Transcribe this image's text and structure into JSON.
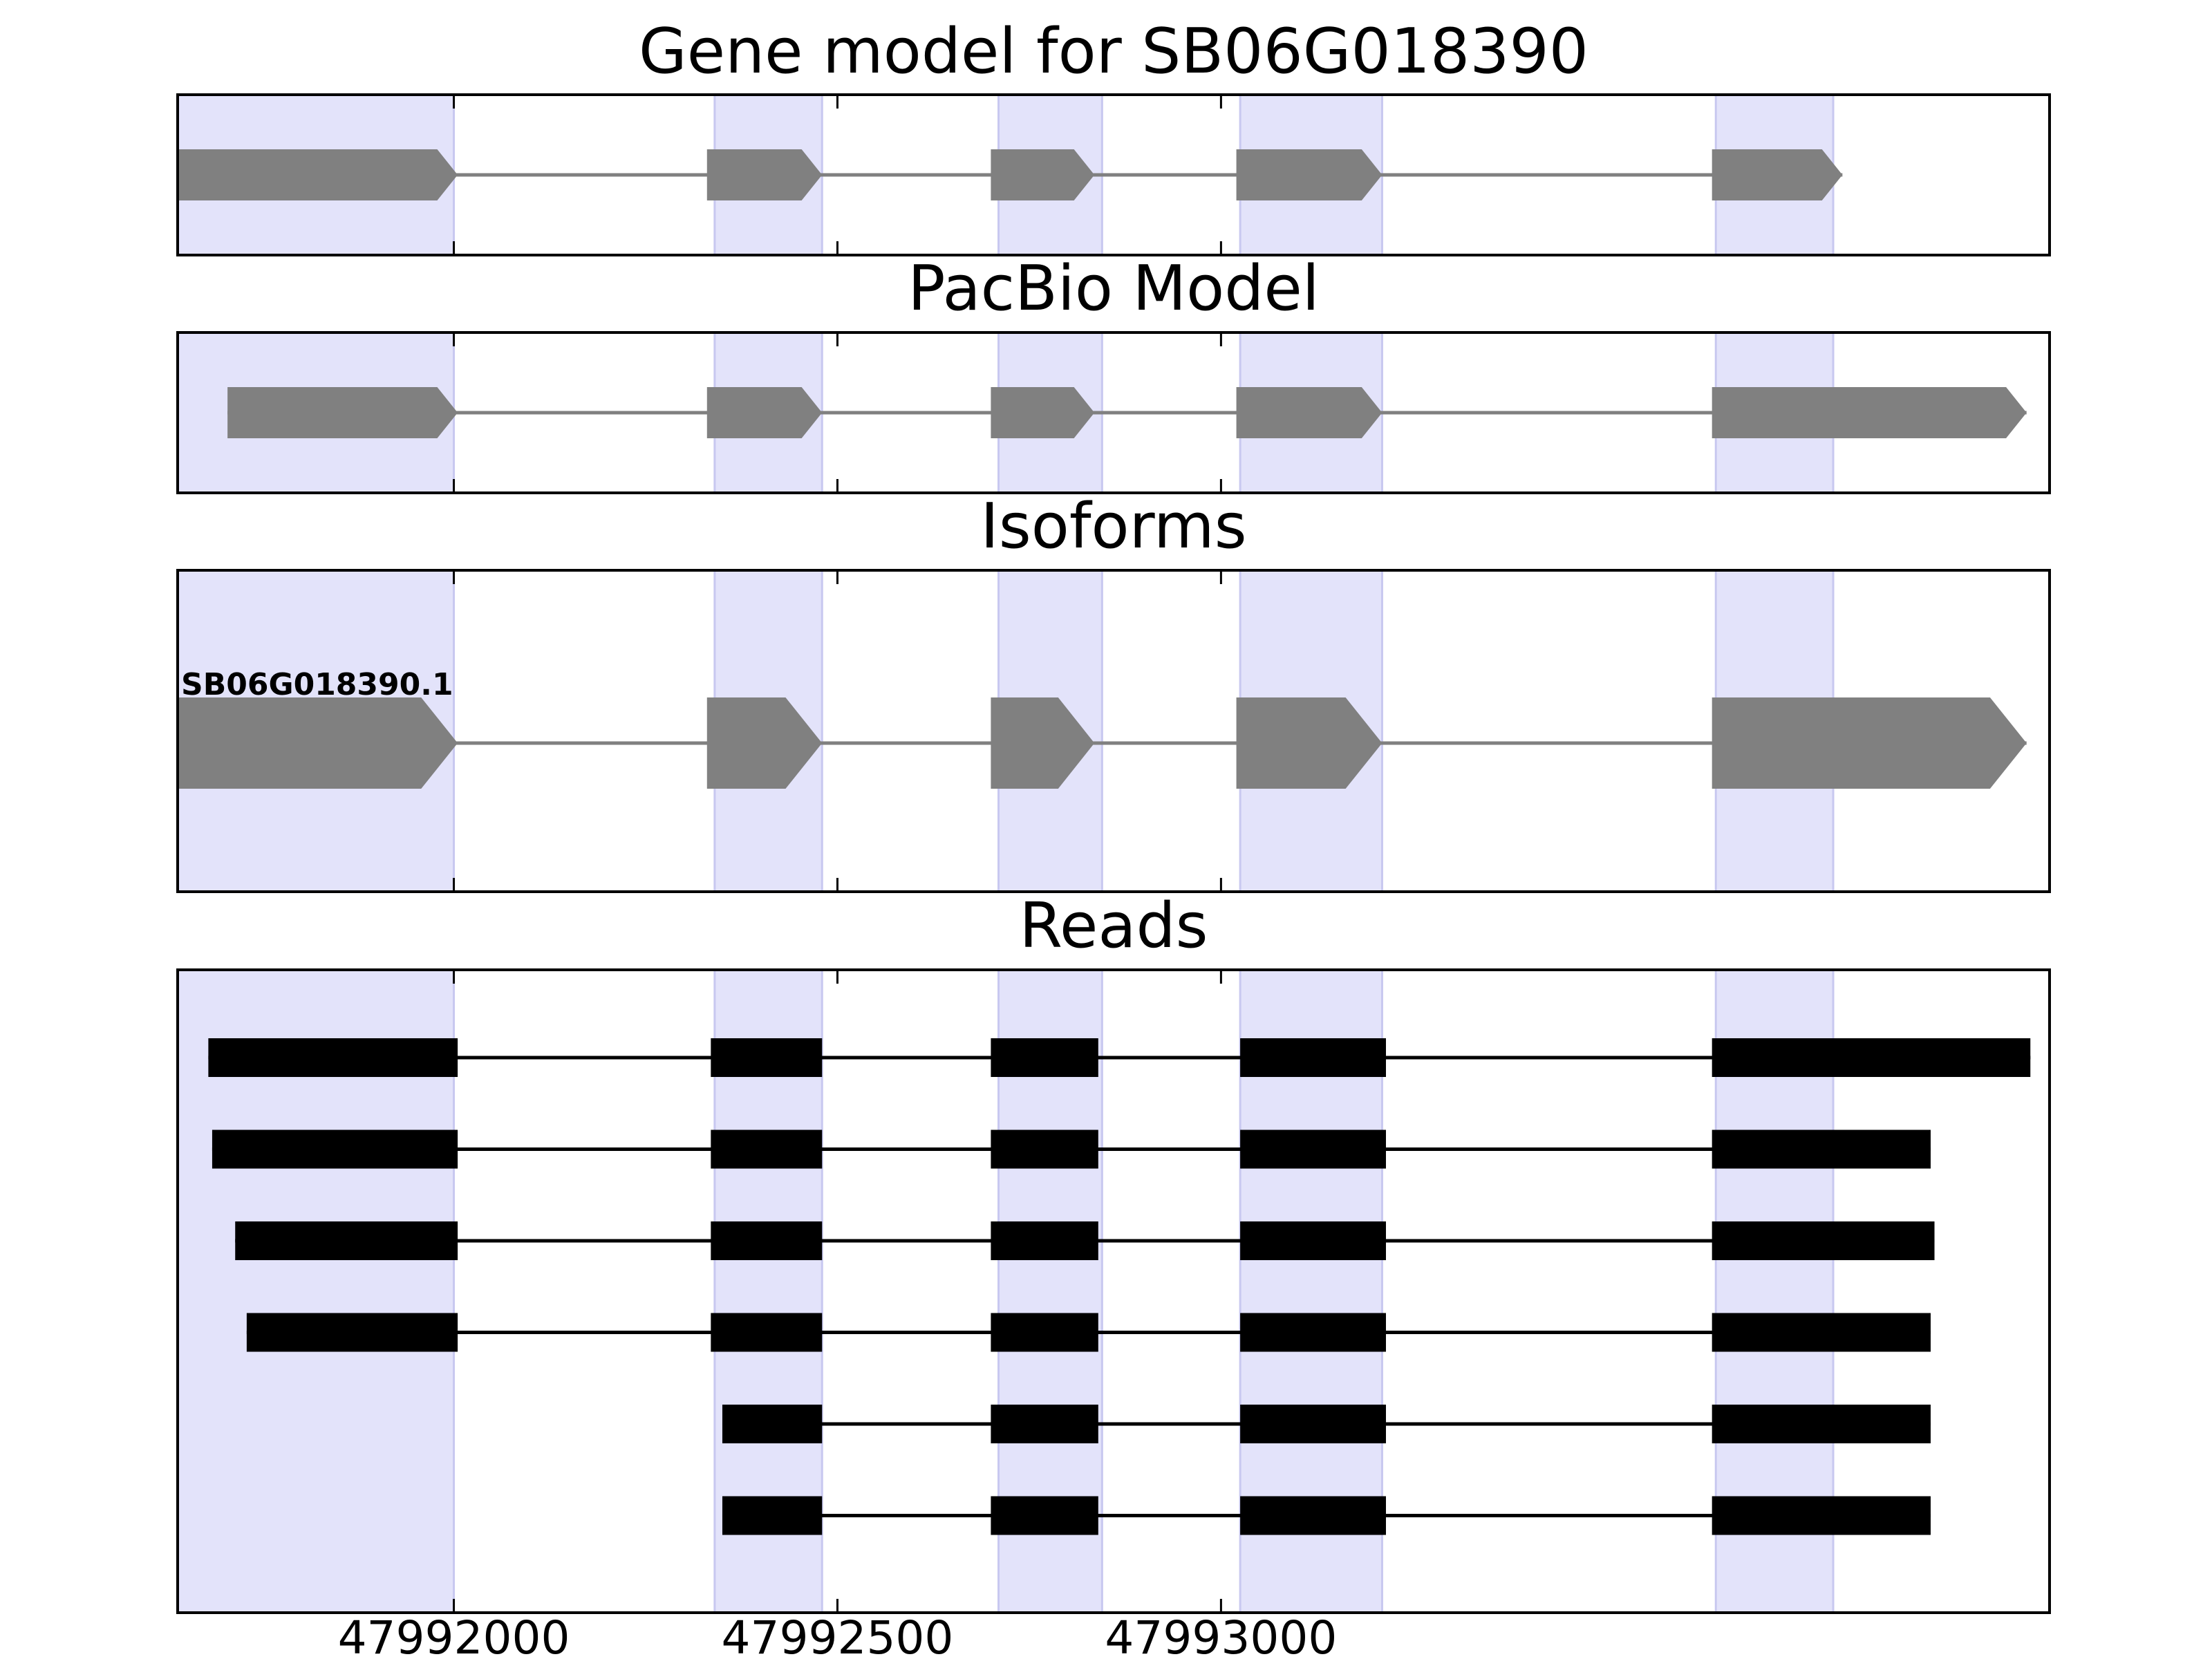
{
  "chart_data": [
    {
      "type": "gene-track",
      "title": "Gene model for SB06G018390",
      "strand": "+",
      "exons": [
        [
          47991640,
          47992005
        ],
        [
          47992330,
          47992480
        ],
        [
          47992700,
          47992835
        ],
        [
          47993020,
          47993210
        ],
        [
          47993640,
          47993810
        ]
      ],
      "shaded_regions": [
        [
          47991640,
          47992000
        ],
        [
          47992340,
          47992480
        ],
        [
          47992710,
          47992845
        ],
        [
          47993025,
          47993210
        ],
        [
          47993645,
          47993798
        ]
      ]
    },
    {
      "type": "gene-track",
      "title": "PacBio Model",
      "strand": "+",
      "exons": [
        [
          47991705,
          47992005
        ],
        [
          47992330,
          47992480
        ],
        [
          47992700,
          47992835
        ],
        [
          47993020,
          47993210
        ],
        [
          47993640,
          47994050
        ]
      ]
    },
    {
      "type": "gene-track",
      "title": "Isoforms",
      "isoforms": [
        {
          "label": "SB06G018390.1",
          "strand": "+",
          "exons": [
            [
              47991640,
              47992005
            ],
            [
              47992330,
              47992480
            ],
            [
              47992700,
              47992835
            ],
            [
              47993020,
              47993210
            ],
            [
              47993640,
              47994050
            ]
          ]
        }
      ]
    },
    {
      "type": "read-track",
      "title": "Reads",
      "reads": [
        [
          [
            47991680,
            47992005
          ],
          [
            47992335,
            47992480
          ],
          [
            47992700,
            47992840
          ],
          [
            47993025,
            47993215
          ],
          [
            47993640,
            47994055
          ]
        ],
        [
          [
            47991685,
            47992005
          ],
          [
            47992335,
            47992480
          ],
          [
            47992700,
            47992840
          ],
          [
            47993025,
            47993215
          ],
          [
            47993640,
            47993925
          ]
        ],
        [
          [
            47991715,
            47992005
          ],
          [
            47992335,
            47992480
          ],
          [
            47992700,
            47992840
          ],
          [
            47993025,
            47993215
          ],
          [
            47993640,
            47993930
          ]
        ],
        [
          [
            47991730,
            47992005
          ],
          [
            47992335,
            47992480
          ],
          [
            47992700,
            47992840
          ],
          [
            47993025,
            47993215
          ],
          [
            47993640,
            47993925
          ]
        ],
        [
          [
            47992350,
            47992480
          ],
          [
            47992700,
            47992840
          ],
          [
            47993025,
            47993215
          ],
          [
            47993640,
            47993925
          ]
        ],
        [
          [
            47992350,
            47992480
          ],
          [
            47992700,
            47992840
          ],
          [
            47993025,
            47993215
          ],
          [
            47993640,
            47993925
          ]
        ]
      ]
    }
  ],
  "axis": {
    "xlim": [
      47991640,
      47994080
    ],
    "xticks": [
      47992000,
      47992500,
      47993000
    ],
    "xtick_labels": [
      "47992000",
      "47992500",
      "47993000"
    ]
  },
  "colors": {
    "exon": "#808080",
    "intron": "#808080",
    "read": "#000000",
    "shade": "#e3e3fa",
    "shade_edge": "#c8c8f0"
  }
}
